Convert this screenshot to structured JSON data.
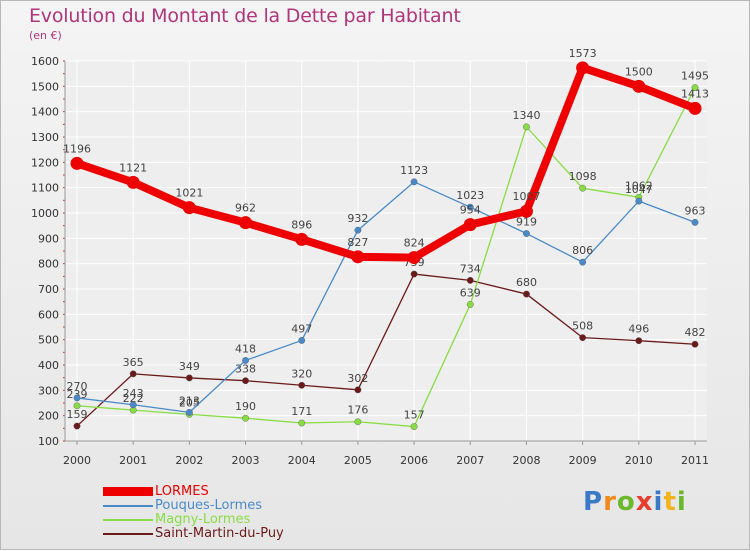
{
  "chart_data": {
    "type": "line",
    "title": "Evolution du Montant de la Dette par Habitant",
    "ylabel": "(en €)",
    "xlabel": "",
    "categories": [
      "2000",
      "2001",
      "2002",
      "2003",
      "2004",
      "2005",
      "2006",
      "2007",
      "2008",
      "2009",
      "2010",
      "2011"
    ],
    "ylim": [
      100,
      1600
    ],
    "yticks": [
      "100",
      "200",
      "300",
      "400",
      "500",
      "600",
      "700",
      "800",
      "900",
      "1000",
      "1100",
      "1200",
      "1300",
      "1400",
      "1500",
      "1600"
    ],
    "grid": true,
    "series": [
      {
        "name": "LORMES",
        "color": "#ee0000",
        "values": [
          1196,
          1121,
          1021,
          962,
          896,
          827,
          824,
          954,
          1007,
          1573,
          1500,
          1413
        ]
      },
      {
        "name": "Pouques-Lormes",
        "color": "#4a8ac8",
        "values": [
          270,
          243,
          213,
          418,
          497,
          932,
          1123,
          1023,
          919,
          806,
          1047,
          963
        ]
      },
      {
        "name": "Magny-Lormes",
        "color": "#88dd44",
        "values": [
          239,
          222,
          205,
          190,
          171,
          176,
          157,
          639,
          1340,
          1098,
          1062,
          1495
        ]
      },
      {
        "name": "Saint-Martin-du-Puy",
        "color": "#6b1a1a",
        "values": [
          159,
          365,
          349,
          338,
          320,
          302,
          759,
          734,
          680,
          508,
          496,
          482
        ]
      }
    ]
  },
  "brand": {
    "letters": [
      "P",
      "r",
      "o",
      "x",
      "i",
      "t",
      "i"
    ],
    "colors": [
      "#3a78c8",
      "#f08a1c",
      "#6bb82a",
      "#e83c2c",
      "#3a78c8",
      "#f0b41c",
      "#6bb82a"
    ]
  }
}
